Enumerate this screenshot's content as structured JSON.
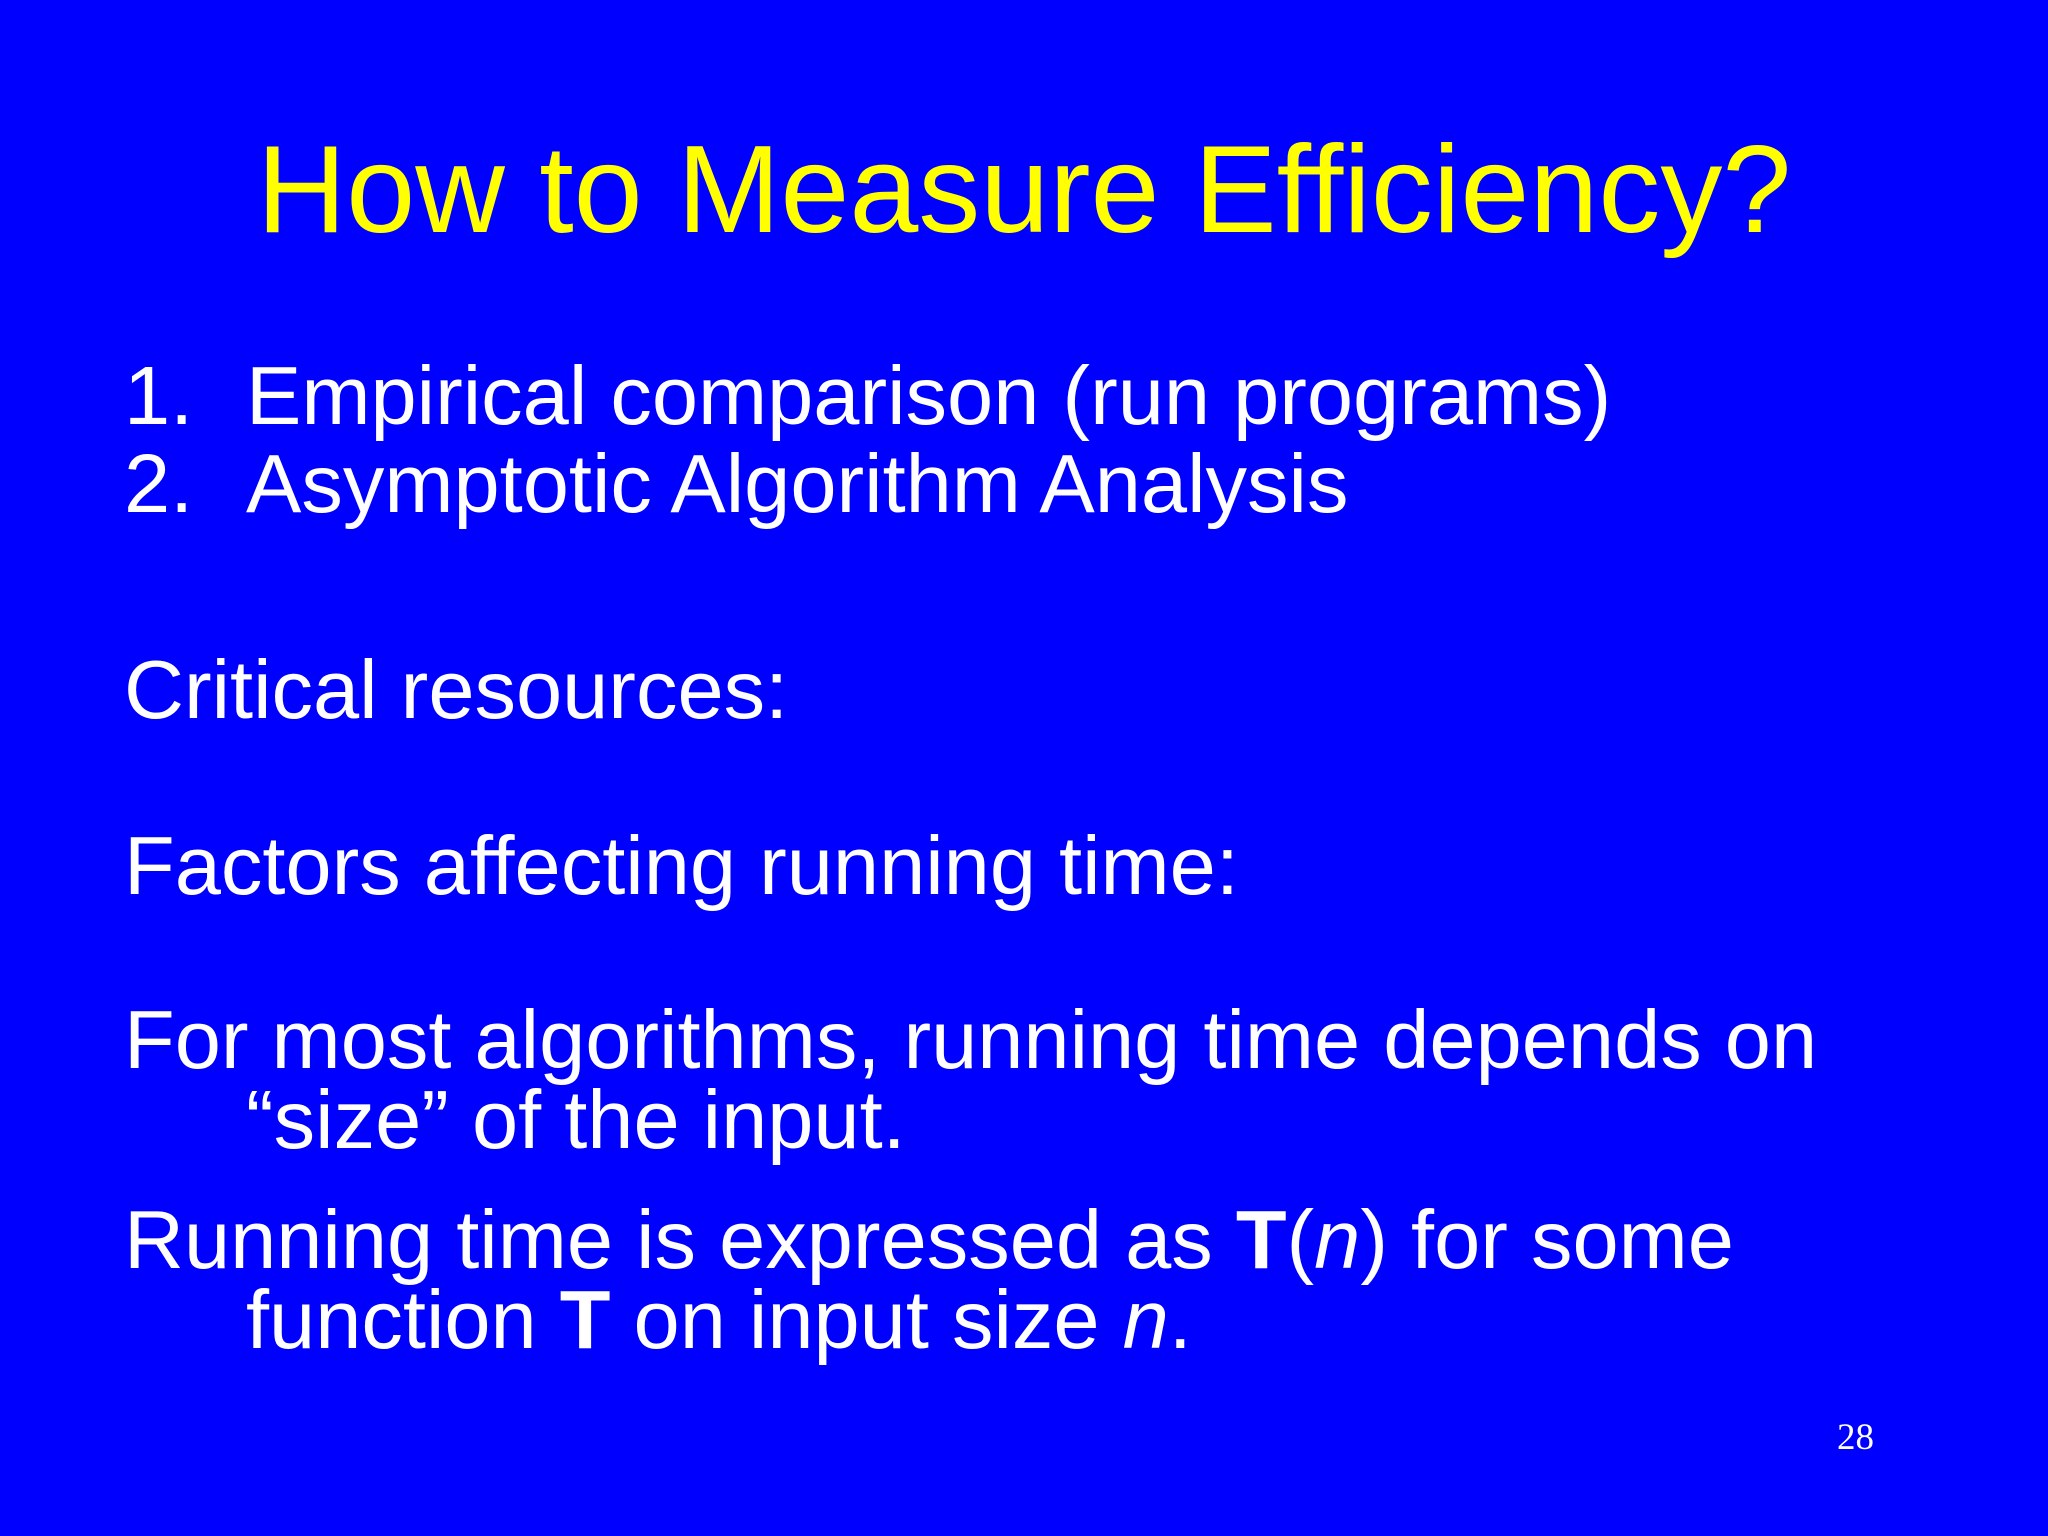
{
  "slide": {
    "title": "How to Measure Efficiency?",
    "list": [
      {
        "num": "1.",
        "text": "Empirical comparison (run programs)"
      },
      {
        "num": "2.",
        "text": "Asymptotic Algorithm Analysis"
      }
    ],
    "critical_resources": "Critical resources:",
    "factors": "Factors affecting running time:",
    "most_algorithms": {
      "line1": "For most algorithms, running time depends on",
      "line2": "“size” of the input."
    },
    "running_time": {
      "line1_a": "Running time is expressed as ",
      "line1_T": "T",
      "line1_paren_open": "(",
      "line1_n": "n",
      "line1_b": ") for some",
      "line2_a": "function ",
      "line2_T": "T",
      "line2_b": " on input size ",
      "line2_n": "n",
      "line2_c": "."
    },
    "page_number": "28"
  },
  "colors": {
    "background": "#0000FF",
    "title": "#FFFF00",
    "text": "#FFFFFF"
  }
}
